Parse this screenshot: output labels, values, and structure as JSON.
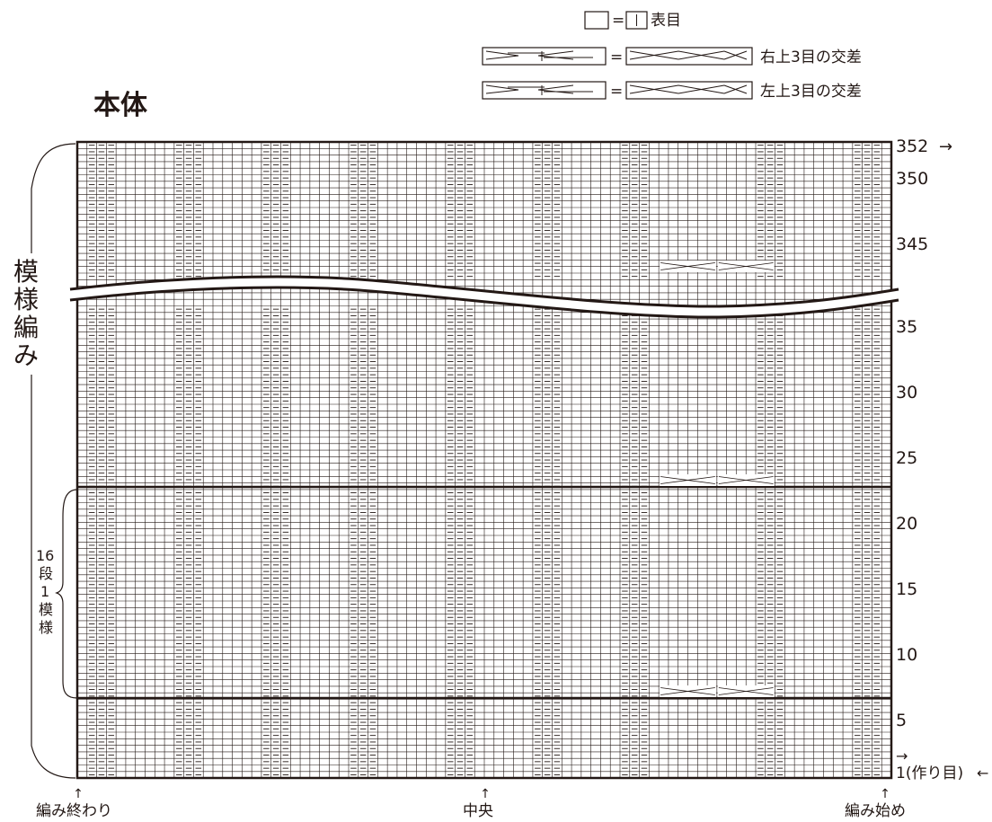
{
  "title": "本体",
  "legend": {
    "knit": "□=□表目",
    "knit_label": "表目",
    "right_cross": "右上3目の交差",
    "left_cross": "左上3目の交差"
  },
  "side_labels": {
    "pattern": "模様編み",
    "repeat_top": "16",
    "repeat_bottom": "段1模様"
  },
  "row_numbers": {
    "top": "352",
    "labels": [
      "350",
      "345",
      "35",
      "30",
      "25",
      "20",
      "15",
      "10",
      "5"
    ],
    "first": "1(作り目)"
  },
  "bottom_labels": {
    "end": "編み終わり",
    "center": "中央",
    "start": "編み始め"
  },
  "chart": {
    "columns": 84,
    "purl_columns": [
      [
        1,
        3
      ],
      [
        10,
        12
      ],
      [
        19,
        21
      ],
      [
        28,
        30
      ],
      [
        38,
        40
      ],
      [
        47,
        49
      ],
      [
        56,
        58
      ],
      [
        70,
        72
      ],
      [
        80,
        82
      ]
    ],
    "cross_rows_from_bottom": [
      9,
      25,
      345
    ],
    "cross_span": [
      60,
      65
    ],
    "cross_span2": [
      66,
      71
    ]
  }
}
